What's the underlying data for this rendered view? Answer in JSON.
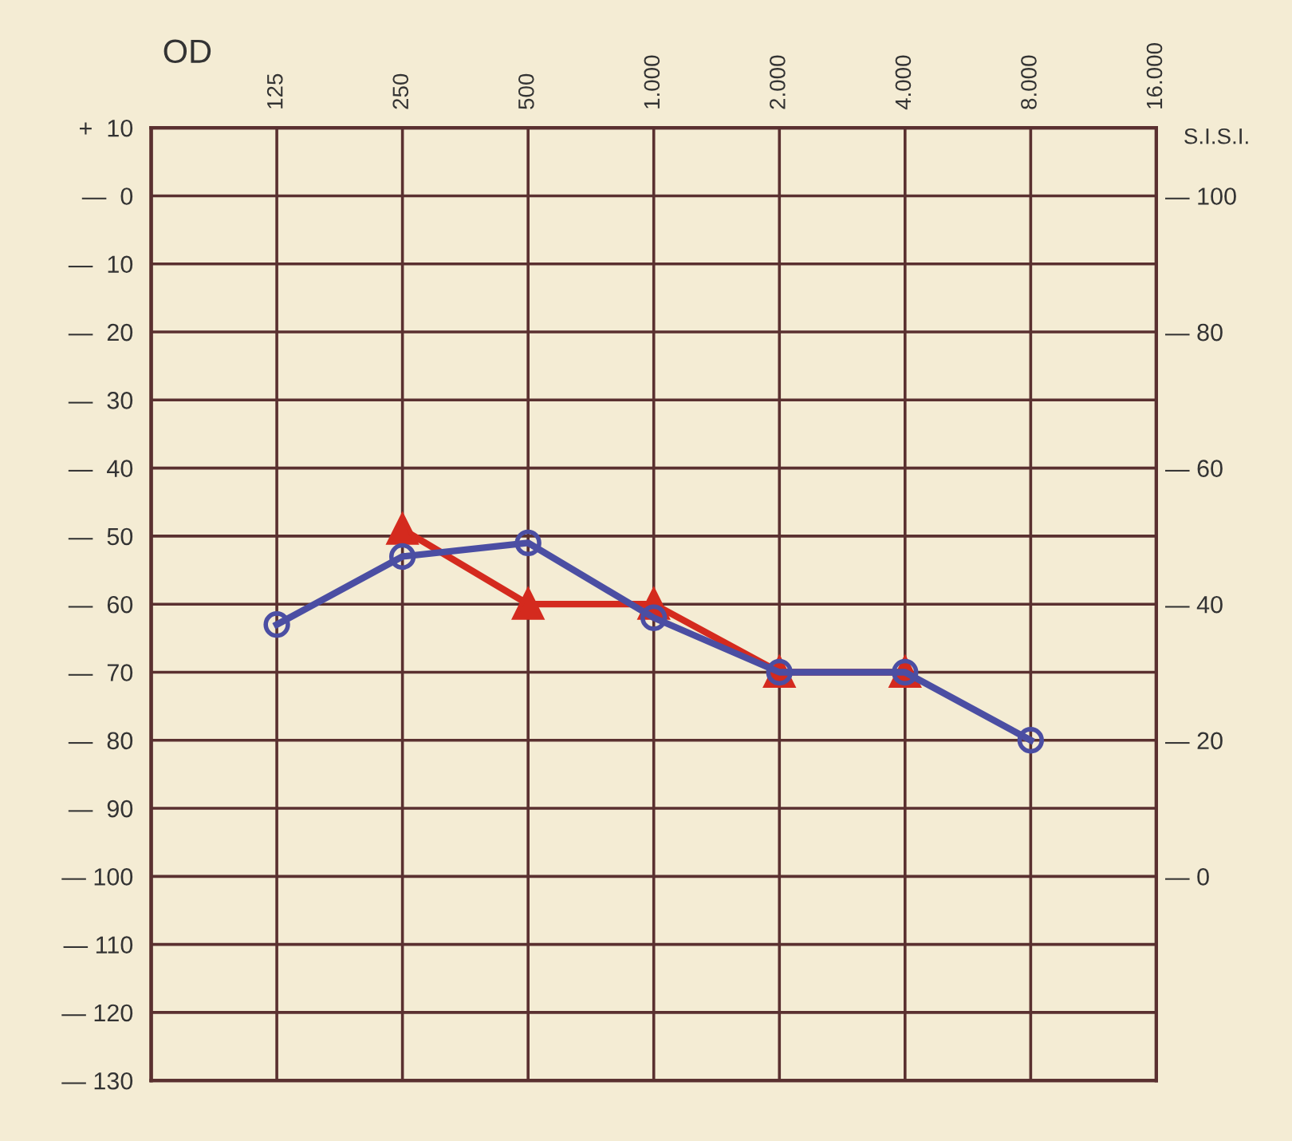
{
  "chart_data": {
    "type": "line",
    "title": "OD",
    "y2label": "S.I.S.I.",
    "x": [
      125,
      250,
      500,
      1000,
      2000,
      4000,
      8000
    ],
    "series": [
      {
        "color": "#4b4ea3",
        "marker": "circle",
        "values": [
          -63,
          -53,
          -51,
          -62,
          -70,
          -70,
          -80
        ]
      },
      {
        "color": "#d42a1e",
        "marker": "triangle",
        "x": [
          250,
          500,
          1000,
          2000,
          4000
        ],
        "values": [
          -49,
          -60,
          -60,
          -70,
          -70
        ]
      }
    ],
    "log": "x",
    "xlim": [
      62.5,
      16000
    ],
    "xticks": [
      125,
      250,
      500,
      {
        "value": 1000,
        "label": "1.000"
      },
      {
        "value": 2000,
        "label": "2.000"
      },
      {
        "value": 4000,
        "label": "4.000"
      },
      {
        "value": 8000,
        "label": "8.000"
      },
      {
        "value": 16000,
        "label": "16.000"
      }
    ],
    "ylim": [
      -130,
      10
    ],
    "yticks": [
      {
        "value": 10,
        "label": "+  10"
      },
      {
        "value": 0,
        "label": "—  0"
      },
      {
        "value": -10,
        "label": "—  10"
      },
      {
        "value": -20,
        "label": "—  20"
      },
      {
        "value": -30,
        "label": "—  30"
      },
      {
        "value": -40,
        "label": "—  40"
      },
      {
        "value": -50,
        "label": "—  50"
      },
      {
        "value": -60,
        "label": "—  60"
      },
      {
        "value": -70,
        "label": "—  70"
      },
      {
        "value": -80,
        "label": "—  80"
      },
      {
        "value": -90,
        "label": "—  90"
      },
      {
        "value": -100,
        "label": "— 100"
      },
      {
        "value": -110,
        "label": "— 110"
      },
      {
        "value": -120,
        "label": "— 120"
      },
      {
        "value": -130,
        "label": "— 130"
      }
    ],
    "y2lim": [
      -30,
      110
    ],
    "y2ticks": [
      {
        "value": 100,
        "label": "— 100"
      },
      {
        "value": 80,
        "label": "— 80"
      },
      {
        "value": 60,
        "label": "— 60"
      },
      {
        "value": 40,
        "label": "— 40"
      },
      {
        "value": 20,
        "label": "— 20"
      },
      {
        "value": 0,
        "label": "— 0"
      }
    ],
    "grid": true,
    "line_style": "solid"
  }
}
